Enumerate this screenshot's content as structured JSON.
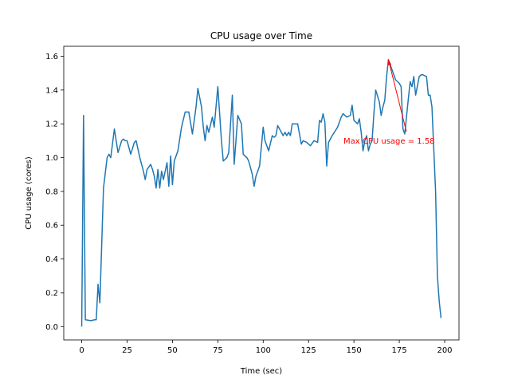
{
  "chart_data": {
    "type": "line",
    "title": "CPU usage over Time",
    "xlabel": "Time (sec)",
    "ylabel": "CPU usage (cores)",
    "x": [
      0,
      1,
      2,
      5,
      7,
      8,
      9,
      10,
      12,
      14,
      15,
      16,
      18,
      19,
      20,
      22,
      23,
      24,
      25,
      27,
      29,
      30,
      32,
      34,
      35,
      36,
      38,
      39,
      40,
      41,
      42,
      43,
      44,
      45,
      46,
      47,
      48,
      49,
      50,
      51,
      53,
      55,
      57,
      59,
      61,
      63,
      64,
      66,
      67,
      68,
      69,
      70,
      72,
      73,
      75,
      77,
      78,
      80,
      81,
      83,
      84,
      85,
      86,
      88,
      89,
      91,
      92,
      93,
      94,
      95,
      96,
      98,
      100,
      101,
      103,
      105,
      106,
      107,
      108,
      111,
      112,
      113,
      114,
      115,
      116,
      119,
      120,
      121,
      122,
      124,
      126,
      128,
      130,
      131,
      132,
      133,
      134,
      135,
      136,
      138,
      141,
      143,
      144,
      146,
      148,
      149,
      150,
      152,
      153,
      154,
      155,
      156,
      157,
      158,
      159,
      160,
      161,
      162,
      164,
      165,
      166,
      167,
      168,
      169,
      170,
      173,
      175,
      176,
      177,
      178,
      180,
      181,
      182,
      183,
      184,
      186,
      187,
      188,
      190,
      191,
      192,
      193,
      195,
      196,
      197,
      198
    ],
    "series": [
      {
        "name": "CPU usage",
        "color": "#1f77b4",
        "values": [
          0,
          1.25,
          0.04,
          0.035,
          0.04,
          0.04,
          0.25,
          0.14,
          0.82,
          1.0,
          1.02,
          1.0,
          1.17,
          1.1,
          1.03,
          1.1,
          1.11,
          1.1,
          1.1,
          1.02,
          1.09,
          1.1,
          1.0,
          0.92,
          0.87,
          0.93,
          0.96,
          0.93,
          0.89,
          0.82,
          0.93,
          0.82,
          0.92,
          0.87,
          0.92,
          0.97,
          0.83,
          1.01,
          0.84,
          0.98,
          1.04,
          1.18,
          1.27,
          1.27,
          1.14,
          1.3,
          1.41,
          1.3,
          1.18,
          1.1,
          1.19,
          1.15,
          1.24,
          1.18,
          1.42,
          1.1,
          0.98,
          1.0,
          1.03,
          1.37,
          0.96,
          1.1,
          1.25,
          1.2,
          1.02,
          1.0,
          0.98,
          0.94,
          0.9,
          0.83,
          0.89,
          0.95,
          1.18,
          1.1,
          1.04,
          1.13,
          1.12,
          1.13,
          1.19,
          1.13,
          1.15,
          1.13,
          1.15,
          1.13,
          1.2,
          1.2,
          1.14,
          1.08,
          1.1,
          1.09,
          1.07,
          1.1,
          1.09,
          1.22,
          1.21,
          1.26,
          1.21,
          0.95,
          1.09,
          1.13,
          1.18,
          1.24,
          1.26,
          1.24,
          1.25,
          1.31,
          1.22,
          1.2,
          1.23,
          1.15,
          1.04,
          1.1,
          1.13,
          1.04,
          1.08,
          1.1,
          1.26,
          1.4,
          1.33,
          1.25,
          1.3,
          1.34,
          1.48,
          1.58,
          1.55,
          1.46,
          1.44,
          1.42,
          1.17,
          1.14,
          1.35,
          1.45,
          1.42,
          1.48,
          1.37,
          1.48,
          1.49,
          1.49,
          1.48,
          1.37,
          1.37,
          1.3,
          0.8,
          0.3,
          0.15,
          0.05
        ]
      }
    ],
    "xlim": [
      -9.9,
      207.9
    ],
    "xticks": [
      0,
      25,
      50,
      75,
      100,
      125,
      150,
      175,
      200
    ],
    "ylim": [
      -0.079,
      1.659
    ],
    "yticks": [
      {
        "value": 0,
        "label": "0.0"
      },
      0.2,
      0.4,
      0.6,
      0.8,
      {
        "value": 1,
        "label": "1.0"
      },
      1.2,
      1.4,
      1.6
    ],
    "annotation": {
      "text": "Max CPU usage = 1.58",
      "xy": [
        169,
        1.58
      ],
      "color": "red"
    }
  }
}
